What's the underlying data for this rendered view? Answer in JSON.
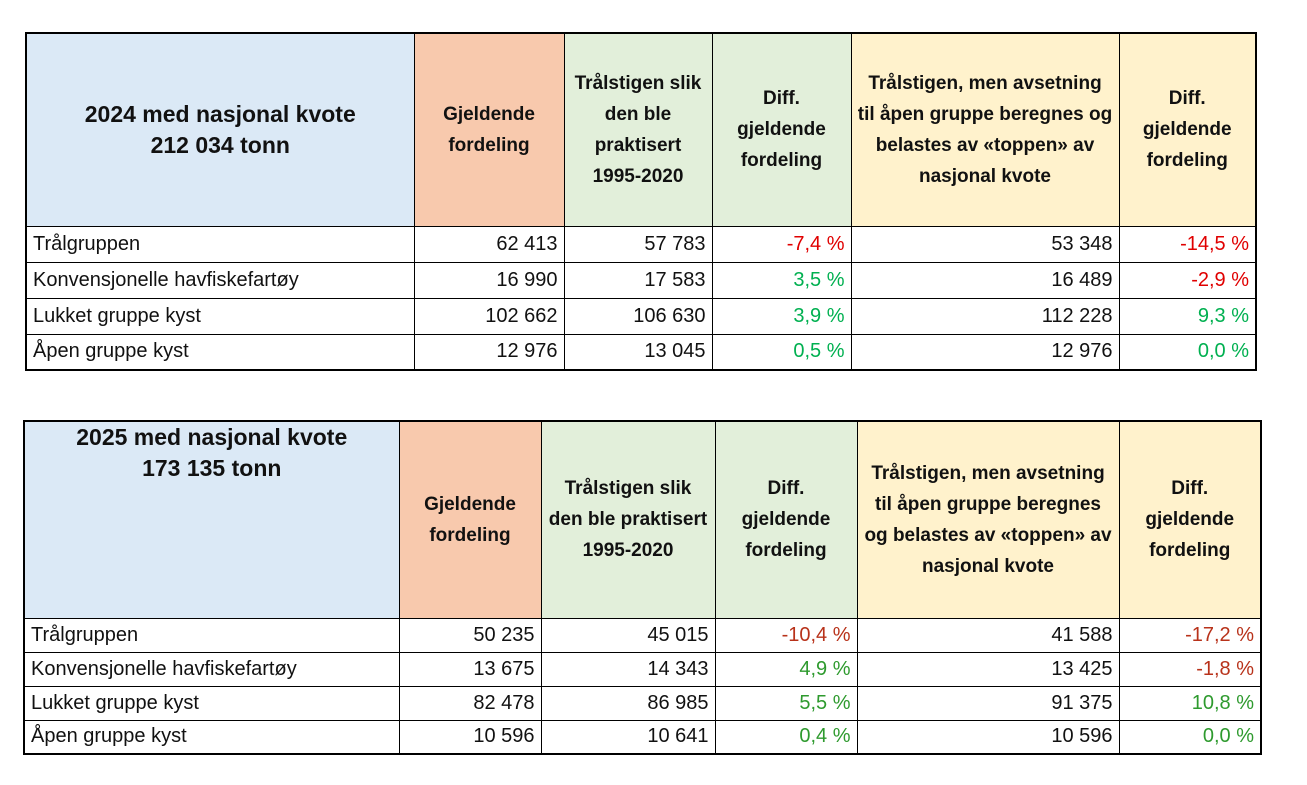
{
  "tables": [
    {
      "header": {
        "title": "2024 med nasjonal kvote 212 034 tonn",
        "columns": [
          "Gjeldende fordeling",
          "Trålstigen slik den ble praktisert 1995-2020",
          "Diff. gjeldende fordeling",
          "Trålstigen, men avsetning til åpen gruppe beregnes og belastes av «toppen» av nasjonal kvote",
          "Diff. gjeldende fordeling"
        ]
      },
      "rows": [
        [
          "Trålgruppen",
          "62 413",
          "57 783",
          "-7,4 %",
          "53 348",
          "-14,5 %"
        ],
        [
          "Konvensjonelle havfiskefartøy",
          "16 990",
          "17 583",
          "3,5 %",
          "16 489",
          "-2,9 %"
        ],
        [
          "Lukket gruppe kyst",
          "102 662",
          "106 630",
          "3,9 %",
          "112 228",
          "9,3 %"
        ],
        [
          "Åpen gruppe kyst",
          "12 976",
          "13 045",
          "0,5 %",
          "12 976",
          "0,0 %"
        ]
      ],
      "negative_color": "#e00000",
      "positive_color": "#00b050"
    },
    {
      "header": {
        "title": "2025 med nasjonal kvote 173 135 tonn",
        "columns": [
          "Gjeldende fordeling",
          "Trålstigen slik den ble praktisert 1995-2020",
          "Diff. gjeldende fordeling",
          "Trålstigen, men avsetning til åpen gruppe beregnes og belastes av «toppen» av nasjonal kvote",
          "Diff. gjeldende fordeling"
        ]
      },
      "rows": [
        [
          "Trålgruppen",
          "50 235",
          "45 015",
          "-10,4 %",
          "41 588",
          "-17,2 %"
        ],
        [
          "Konvensjonelle havfiskefartøy",
          "13 675",
          "14 343",
          "4,9 %",
          "13 425",
          "-1,8 %"
        ],
        [
          "Lukket gruppe kyst",
          "82 478",
          "86 985",
          "5,5 %",
          "91 375",
          "10,8 %"
        ],
        [
          "Åpen gruppe kyst",
          "10 596",
          "10 641",
          "0,4 %",
          "10 596",
          "0,0 %"
        ]
      ],
      "negative_color": "#b8321a",
      "positive_color": "#2e9a2e"
    }
  ]
}
